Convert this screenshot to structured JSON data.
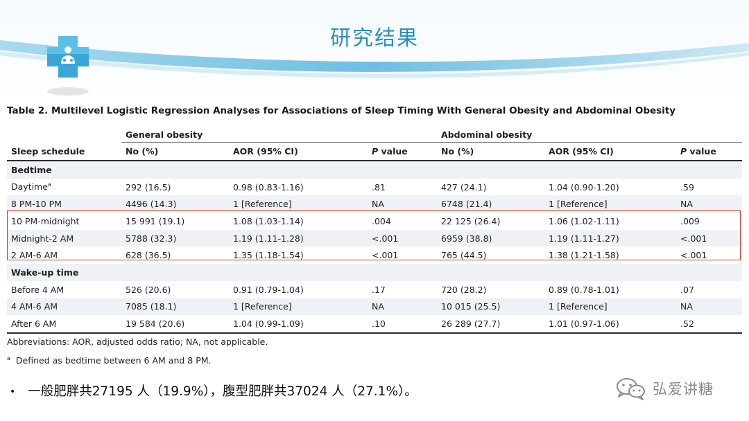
{
  "slide": {
    "title": "研究结果",
    "title_color": "#2b8fbd"
  },
  "table": {
    "caption": "Table 2. Multilevel Logistic Regression Analyses for Associations of Sleep Timing With General Obesity and Abdominal Obesity",
    "group_headers": {
      "general": "General obesity",
      "abdominal": "Abdominal obesity"
    },
    "columns": [
      "Sleep schedule",
      "No (%)",
      "AOR (95% CI)",
      "P value",
      "No (%)",
      "AOR (95% CI)",
      "P value"
    ],
    "sections": {
      "bedtime": "Bedtime",
      "wakeup": "Wake-up time"
    },
    "rows": [
      {
        "label": "Daytime",
        "footnote_mark": "a",
        "g_n": "292 (16.5)",
        "g_aor": "0.98 (0.83-1.16)",
        "g_p": ".81",
        "a_n": "427 (24.1)",
        "a_aor": "1.04 (0.90-1.20)",
        "a_p": ".59"
      },
      {
        "label": "8 PM-10 PM",
        "g_n": "4496 (14.3)",
        "g_aor": "1 [Reference]",
        "g_p": "NA",
        "a_n": "6748 (21.4)",
        "a_aor": "1 [Reference]",
        "a_p": "NA"
      },
      {
        "label": "10 PM-midnight",
        "g_n": "15 991 (19.1)",
        "g_aor": "1.08 (1.03-1.14)",
        "g_p": ".004",
        "a_n": "22 125 (26.4)",
        "a_aor": "1.06 (1.02-1.11)",
        "a_p": ".009"
      },
      {
        "label": "Midnight-2 AM",
        "g_n": "5788 (32.3)",
        "g_aor": "1.19 (1.11-1.28)",
        "g_p": "<.001",
        "a_n": "6959 (38.8)",
        "a_aor": "1.19 (1.11-1.27)",
        "a_p": "<.001"
      },
      {
        "label": "2 AM-6 AM",
        "g_n": "628 (36.5)",
        "g_aor": "1.35 (1.18-1.54)",
        "g_p": "<.001",
        "a_n": "765 (44.5)",
        "a_aor": "1.38 (1.21-1.58)",
        "a_p": "<.001"
      },
      {
        "label": "Before 4 AM",
        "g_n": "526 (20.6)",
        "g_aor": "0.91 (0.79-1.04)",
        "g_p": ".17",
        "a_n": "720 (28.2)",
        "a_aor": "0.89 (0.78-1.01)",
        "a_p": ".07"
      },
      {
        "label": "4 AM-6 AM",
        "g_n": "7085 (18.1)",
        "g_aor": "1 [Reference]",
        "g_p": "NA",
        "a_n": "10 015 (25.5)",
        "a_aor": "1 [Reference]",
        "a_p": "NA"
      },
      {
        "label": "After 6 AM",
        "g_n": "19 584 (20.6)",
        "g_aor": "1.04 (0.99-1.09)",
        "g_p": ".10",
        "a_n": "26 289 (27.7)",
        "a_aor": "1.01 (0.97-1.06)",
        "a_p": ".52"
      }
    ]
  },
  "notes": {
    "abbreviations": "Abbreviations: AOR, adjusted odds ratio; NA, not applicable.",
    "footnote_mark": "a",
    "footnote": "Defined as bedtime between 6 AM and 8 PM."
  },
  "bullet": "一般肥胖共27195 人（19.9%），腹型肥胖共37024 人（27.1%）。",
  "watermark": {
    "text": "弘爱讲糖",
    "icon": "wechat-icon"
  },
  "colors": {
    "highlight": "#c0392b",
    "header_band": "#5fb7de"
  }
}
